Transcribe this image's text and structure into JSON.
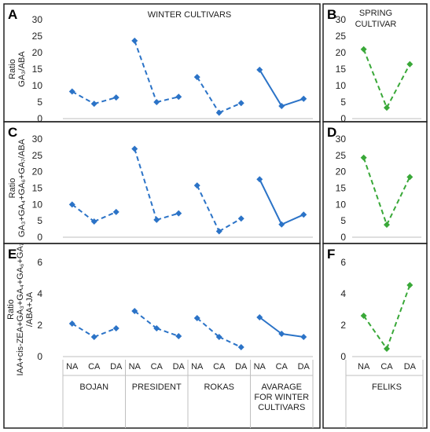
{
  "colors": {
    "winter": "#2b73c7",
    "spring": "#39a838",
    "panel_border": "#222222",
    "axis_text": "#222222",
    "grid": "#bfbfbf"
  },
  "headers": {
    "winter": "WINTER  CULTIVARS",
    "spring_line1": "SPRING",
    "spring_line2": "CULTIVAR"
  },
  "chart_data": [
    {
      "id": "A",
      "panel": "A",
      "type": "line",
      "ylabel": "Ratio",
      "ylabel_lines": [
        "Ratio",
        "GA₃/ABA"
      ],
      "ylim": [
        0,
        30
      ],
      "yticks": [
        0,
        5,
        10,
        15,
        20,
        25,
        30
      ],
      "x_labels_shown": false,
      "style": "dash-solid",
      "series": [
        {
          "cultivar": "BOJAN",
          "values": [
            8.2,
            4.5,
            6.4
          ]
        },
        {
          "cultivar": "PRESIDENT",
          "values": [
            23.6,
            5.0,
            6.6
          ]
        },
        {
          "cultivar": "ROKAS",
          "values": [
            12.6,
            1.8,
            4.7
          ]
        },
        {
          "cultivar": "AVARAGE FOR WINTER CULTIVARS",
          "values": [
            14.8,
            3.8,
            6.0
          ]
        }
      ]
    },
    {
      "id": "B",
      "panel": "B",
      "type": "line",
      "ylim": [
        0,
        30
      ],
      "yticks": [
        0,
        5,
        10,
        15,
        20,
        25,
        30
      ],
      "x_labels_shown": false,
      "style": "dashed",
      "series": [
        {
          "cultivar": "FELIKS",
          "values": [
            21.0,
            3.3,
            16.5
          ]
        }
      ]
    },
    {
      "id": "C",
      "panel": "C",
      "type": "line",
      "ylabel_lines": [
        "Ratio",
        "GA₃+GA₄+GA₆+GA₇/ABA"
      ],
      "ylim": [
        0,
        30
      ],
      "yticks": [
        0,
        5,
        10,
        15,
        20,
        25,
        30
      ],
      "x_labels_shown": false,
      "style": "dash-solid",
      "series": [
        {
          "cultivar": "BOJAN",
          "values": [
            10.0,
            4.8,
            7.7
          ]
        },
        {
          "cultivar": "PRESIDENT",
          "values": [
            27.0,
            5.3,
            7.3
          ]
        },
        {
          "cultivar": "ROKAS",
          "values": [
            15.8,
            1.8,
            5.7
          ]
        },
        {
          "cultivar": "AVARAGE FOR WINTER CULTIVARS",
          "values": [
            17.7,
            3.9,
            6.9
          ]
        }
      ]
    },
    {
      "id": "D",
      "panel": "D",
      "type": "line",
      "ylim": [
        0,
        30
      ],
      "yticks": [
        0,
        5,
        10,
        15,
        20,
        25,
        30
      ],
      "x_labels_shown": false,
      "style": "dashed",
      "series": [
        {
          "cultivar": "FELIKS",
          "values": [
            24.3,
            3.8,
            18.4
          ]
        }
      ]
    },
    {
      "id": "E",
      "panel": "E",
      "type": "line",
      "ylabel_lines": [
        "Ratio",
        "IAA+cis-ZEA+GA₃+GA₄+GA₆+GA₇",
        "/ABA+JA"
      ],
      "ylim": [
        0,
        6
      ],
      "yticks": [
        0,
        2,
        4,
        6
      ],
      "x_labels_shown": true,
      "style": "dash-solid",
      "series": [
        {
          "cultivar": "BOJAN",
          "values": [
            2.1,
            1.25,
            1.8
          ]
        },
        {
          "cultivar": "PRESIDENT",
          "values": [
            2.9,
            1.8,
            1.3
          ]
        },
        {
          "cultivar": "ROKAS",
          "values": [
            2.45,
            1.25,
            0.6
          ]
        },
        {
          "cultivar": "AVARAGE FOR WINTER CULTIVARS",
          "values": [
            2.5,
            1.45,
            1.25
          ]
        }
      ]
    },
    {
      "id": "F",
      "panel": "F",
      "type": "line",
      "ylim": [
        0,
        6
      ],
      "yticks": [
        0,
        2,
        4,
        6
      ],
      "x_labels_shown": true,
      "style": "dashed",
      "series": [
        {
          "cultivar": "FELIKS",
          "values": [
            2.6,
            0.5,
            4.55
          ]
        }
      ]
    }
  ],
  "x_categories": [
    "NA",
    "CA",
    "DA"
  ],
  "winter_group_labels": [
    [
      "BOJAN"
    ],
    [
      "PRESIDENT"
    ],
    [
      "ROKAS"
    ],
    [
      "AVARAGE",
      "FOR WINTER",
      "CULTIVARS"
    ]
  ],
  "spring_group_labels": [
    [
      "FELIKS"
    ]
  ]
}
